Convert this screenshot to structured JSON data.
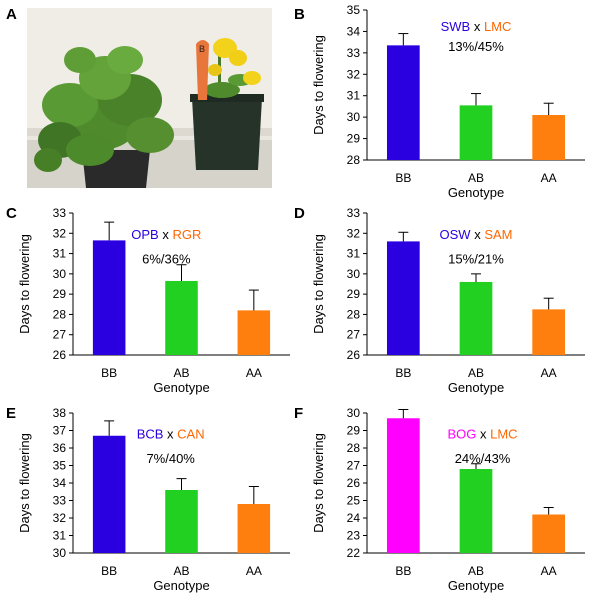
{
  "figure": {
    "letters": [
      "A",
      "B",
      "C",
      "D",
      "E",
      "F"
    ]
  },
  "photo": {
    "label": "A",
    "pot_label_text": "B"
  },
  "chart_data": [
    {
      "type": "bar",
      "panel": "B",
      "categories": [
        "BB",
        "AB",
        "AA"
      ],
      "values": [
        33.35,
        30.55,
        30.1
      ],
      "errors": [
        0.55,
        0.55,
        0.55
      ],
      "colors": [
        "#2a00e0",
        "#22d022",
        "#ff7f0e"
      ],
      "ylim": [
        28,
        35
      ],
      "yticks": [
        28,
        29,
        30,
        31,
        32,
        33,
        34,
        35
      ],
      "ylabel": "Days to flowering",
      "xlabel": "Genotype",
      "cross": {
        "parent1": "SWB",
        "parent1_color": "#2a00e0",
        "x": "x",
        "parent2": "LMC",
        "parent2_color": "#ff6600"
      },
      "annotation": "13%/45%"
    },
    {
      "type": "bar",
      "panel": "C",
      "categories": [
        "BB",
        "AB",
        "AA"
      ],
      "values": [
        31.65,
        29.65,
        28.2
      ],
      "errors": [
        0.9,
        0.8,
        1.0
      ],
      "colors": [
        "#2a00e0",
        "#22d022",
        "#ff7f0e"
      ],
      "ylim": [
        26,
        33
      ],
      "yticks": [
        26,
        27,
        28,
        29,
        30,
        31,
        32,
        33
      ],
      "ylabel": "Days to flowering",
      "xlabel": "Genotype",
      "cross": {
        "parent1": "OPB",
        "parent1_color": "#2a00e0",
        "x": "x",
        "parent2": "RGR",
        "parent2_color": "#ff6600"
      },
      "annotation": "6%/36%"
    },
    {
      "type": "bar",
      "panel": "D",
      "categories": [
        "BB",
        "AB",
        "AA"
      ],
      "values": [
        31.6,
        29.6,
        28.25
      ],
      "errors": [
        0.45,
        0.4,
        0.55
      ],
      "colors": [
        "#2a00e0",
        "#22d022",
        "#ff7f0e"
      ],
      "ylim": [
        26,
        33
      ],
      "yticks": [
        26,
        27,
        28,
        29,
        30,
        31,
        32,
        33
      ],
      "ylabel": "Days to flowering",
      "xlabel": "Genotype",
      "cross": {
        "parent1": "OSW",
        "parent1_color": "#2a00e0",
        "x": "x",
        "parent2": "SAM",
        "parent2_color": "#ff6600"
      },
      "annotation": "15%/21%"
    },
    {
      "type": "bar",
      "panel": "E",
      "categories": [
        "BB",
        "AB",
        "AA"
      ],
      "values": [
        36.7,
        33.6,
        32.8
      ],
      "errors": [
        0.85,
        0.65,
        1.0
      ],
      "colors": [
        "#2a00e0",
        "#22d022",
        "#ff7f0e"
      ],
      "ylim": [
        30,
        38
      ],
      "yticks": [
        30,
        31,
        32,
        33,
        34,
        35,
        36,
        37,
        38
      ],
      "ylabel": "Days to flowering",
      "xlabel": "Genotype",
      "cross": {
        "parent1": "BCB",
        "parent1_color": "#2a00e0",
        "x": "x",
        "parent2": "CAN",
        "parent2_color": "#ff6600"
      },
      "annotation": "7%/40%"
    },
    {
      "type": "bar",
      "panel": "F",
      "categories": [
        "BB",
        "AB",
        "AA"
      ],
      "values": [
        29.7,
        26.8,
        24.2
      ],
      "errors": [
        0.5,
        0.3,
        0.4
      ],
      "colors": [
        "#ff00ff",
        "#22d022",
        "#ff7f0e"
      ],
      "ylim": [
        22,
        30
      ],
      "yticks": [
        22,
        23,
        24,
        25,
        26,
        27,
        28,
        29,
        30
      ],
      "ylabel": "Days to flowering",
      "xlabel": "Genotype",
      "cross": {
        "parent1": "BOG",
        "parent1_color": "#ff00ff",
        "x": "x",
        "parent2": "LMC",
        "parent2_color": "#ff6600"
      },
      "annotation": "24%/43%"
    }
  ]
}
